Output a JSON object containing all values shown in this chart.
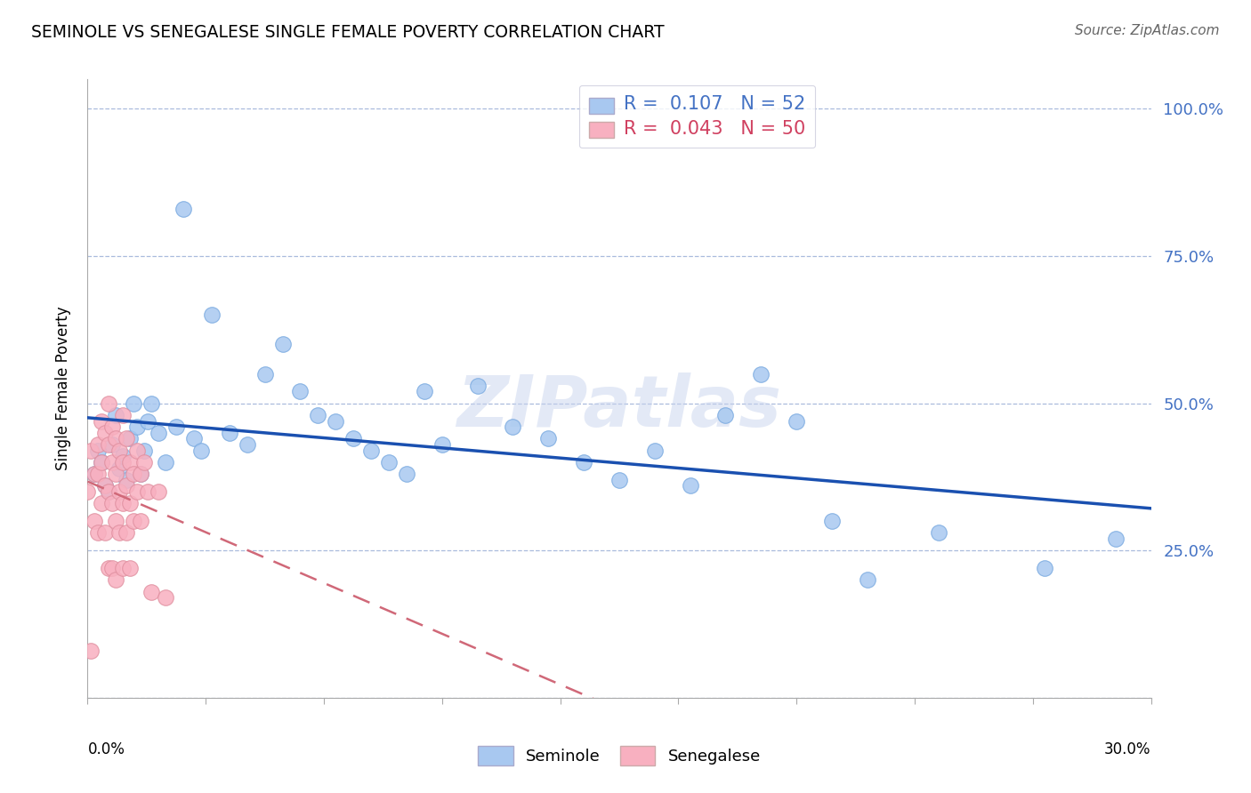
{
  "title": "SEMINOLE VS SENEGALESE SINGLE FEMALE POVERTY CORRELATION CHART",
  "source": "Source: ZipAtlas.com",
  "ylabel": "Single Female Poverty",
  "xlim": [
    0.0,
    0.3
  ],
  "ylim": [
    0.0,
    1.05
  ],
  "seminole_R": 0.107,
  "seminole_N": 52,
  "senegalese_R": 0.043,
  "senegalese_N": 50,
  "seminole_color": "#A8C8F0",
  "seminole_edge": "#7AAAE0",
  "senegalese_color": "#F8B0C0",
  "senegalese_edge": "#E090A0",
  "trendline_blue": "#1A50B0",
  "trendline_pink": "#D06878",
  "watermark": "ZIPatlas",
  "ytick_vals": [
    0.0,
    0.25,
    0.5,
    0.75,
    1.0
  ],
  "ytick_labels": [
    "",
    "25.0%",
    "50.0%",
    "75.0%",
    "100.0%"
  ],
  "seminole_x": [
    0.002,
    0.003,
    0.004,
    0.005,
    0.006,
    0.007,
    0.008,
    0.009,
    0.01,
    0.011,
    0.012,
    0.013,
    0.014,
    0.015,
    0.016,
    0.017,
    0.018,
    0.02,
    0.022,
    0.025,
    0.027,
    0.03,
    0.032,
    0.035,
    0.04,
    0.045,
    0.05,
    0.055,
    0.06,
    0.065,
    0.07,
    0.075,
    0.08,
    0.085,
    0.09,
    0.095,
    0.1,
    0.11,
    0.12,
    0.13,
    0.14,
    0.15,
    0.16,
    0.17,
    0.18,
    0.19,
    0.2,
    0.21,
    0.22,
    0.24,
    0.27,
    0.29
  ],
  "seminole_y": [
    0.38,
    0.42,
    0.4,
    0.36,
    0.35,
    0.43,
    0.48,
    0.39,
    0.41,
    0.37,
    0.44,
    0.5,
    0.46,
    0.38,
    0.42,
    0.47,
    0.5,
    0.45,
    0.4,
    0.46,
    0.83,
    0.44,
    0.42,
    0.65,
    0.45,
    0.43,
    0.55,
    0.6,
    0.52,
    0.48,
    0.47,
    0.44,
    0.42,
    0.4,
    0.38,
    0.52,
    0.43,
    0.53,
    0.46,
    0.44,
    0.4,
    0.37,
    0.42,
    0.36,
    0.48,
    0.55,
    0.47,
    0.3,
    0.2,
    0.28,
    0.22,
    0.27
  ],
  "senegalese_x": [
    0.0,
    0.001,
    0.001,
    0.002,
    0.002,
    0.003,
    0.003,
    0.003,
    0.004,
    0.004,
    0.004,
    0.005,
    0.005,
    0.005,
    0.006,
    0.006,
    0.006,
    0.006,
    0.007,
    0.007,
    0.007,
    0.007,
    0.008,
    0.008,
    0.008,
    0.008,
    0.009,
    0.009,
    0.009,
    0.01,
    0.01,
    0.01,
    0.01,
    0.011,
    0.011,
    0.011,
    0.012,
    0.012,
    0.012,
    0.013,
    0.013,
    0.014,
    0.014,
    0.015,
    0.015,
    0.016,
    0.017,
    0.018,
    0.02,
    0.022
  ],
  "senegalese_y": [
    0.35,
    0.42,
    0.08,
    0.38,
    0.3,
    0.43,
    0.38,
    0.28,
    0.47,
    0.4,
    0.33,
    0.45,
    0.36,
    0.28,
    0.5,
    0.43,
    0.35,
    0.22,
    0.46,
    0.4,
    0.33,
    0.22,
    0.44,
    0.38,
    0.3,
    0.2,
    0.42,
    0.35,
    0.28,
    0.48,
    0.4,
    0.33,
    0.22,
    0.44,
    0.36,
    0.28,
    0.4,
    0.33,
    0.22,
    0.38,
    0.3,
    0.42,
    0.35,
    0.38,
    0.3,
    0.4,
    0.35,
    0.18,
    0.35,
    0.17
  ]
}
